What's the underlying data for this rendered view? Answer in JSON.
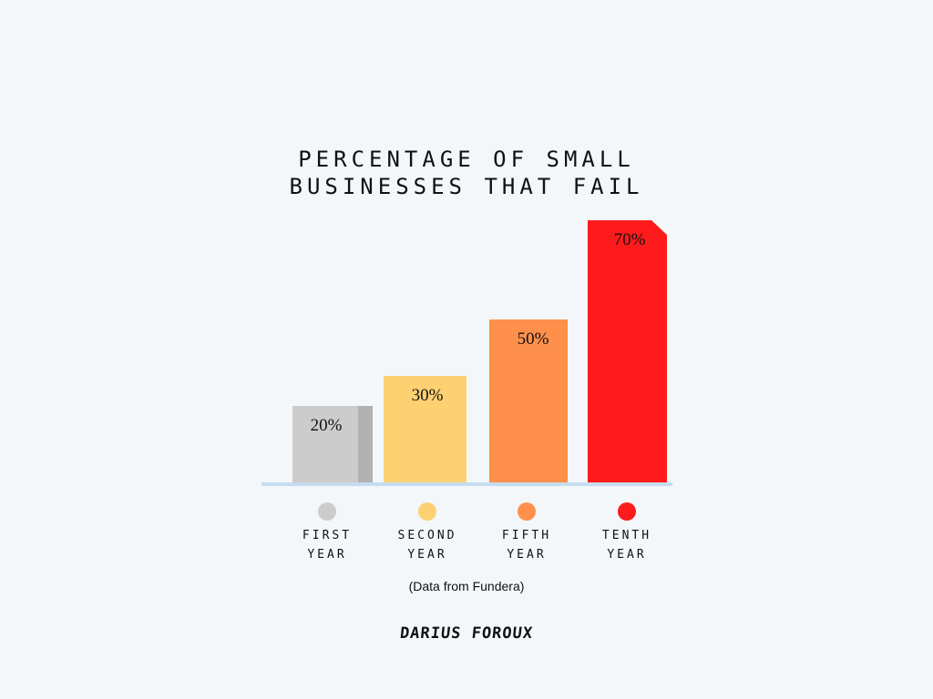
{
  "chart_data": {
    "type": "bar",
    "title_lines": [
      "PERCENTAGE OF SMALL",
      "BUSINESSES THAT FAIL"
    ],
    "categories": [
      [
        "FIRST",
        "YEAR"
      ],
      [
        "SECOND",
        "YEAR"
      ],
      [
        "FIFTH",
        "YEAR"
      ],
      [
        "TENTH",
        "YEAR"
      ]
    ],
    "values": [
      20,
      30,
      50,
      70
    ],
    "data_labels": [
      "20%",
      "30%",
      "50%",
      "70%"
    ],
    "colors": [
      "#cccccc",
      "#fdd172",
      "#ff904b",
      "#ff1b1b"
    ],
    "xlabel": "",
    "ylabel": "",
    "ylim": [
      0,
      70
    ],
    "grid": false,
    "legend": "bottom"
  },
  "note": "(Data from Fundera)",
  "signature": "DARIUS FOROUX"
}
